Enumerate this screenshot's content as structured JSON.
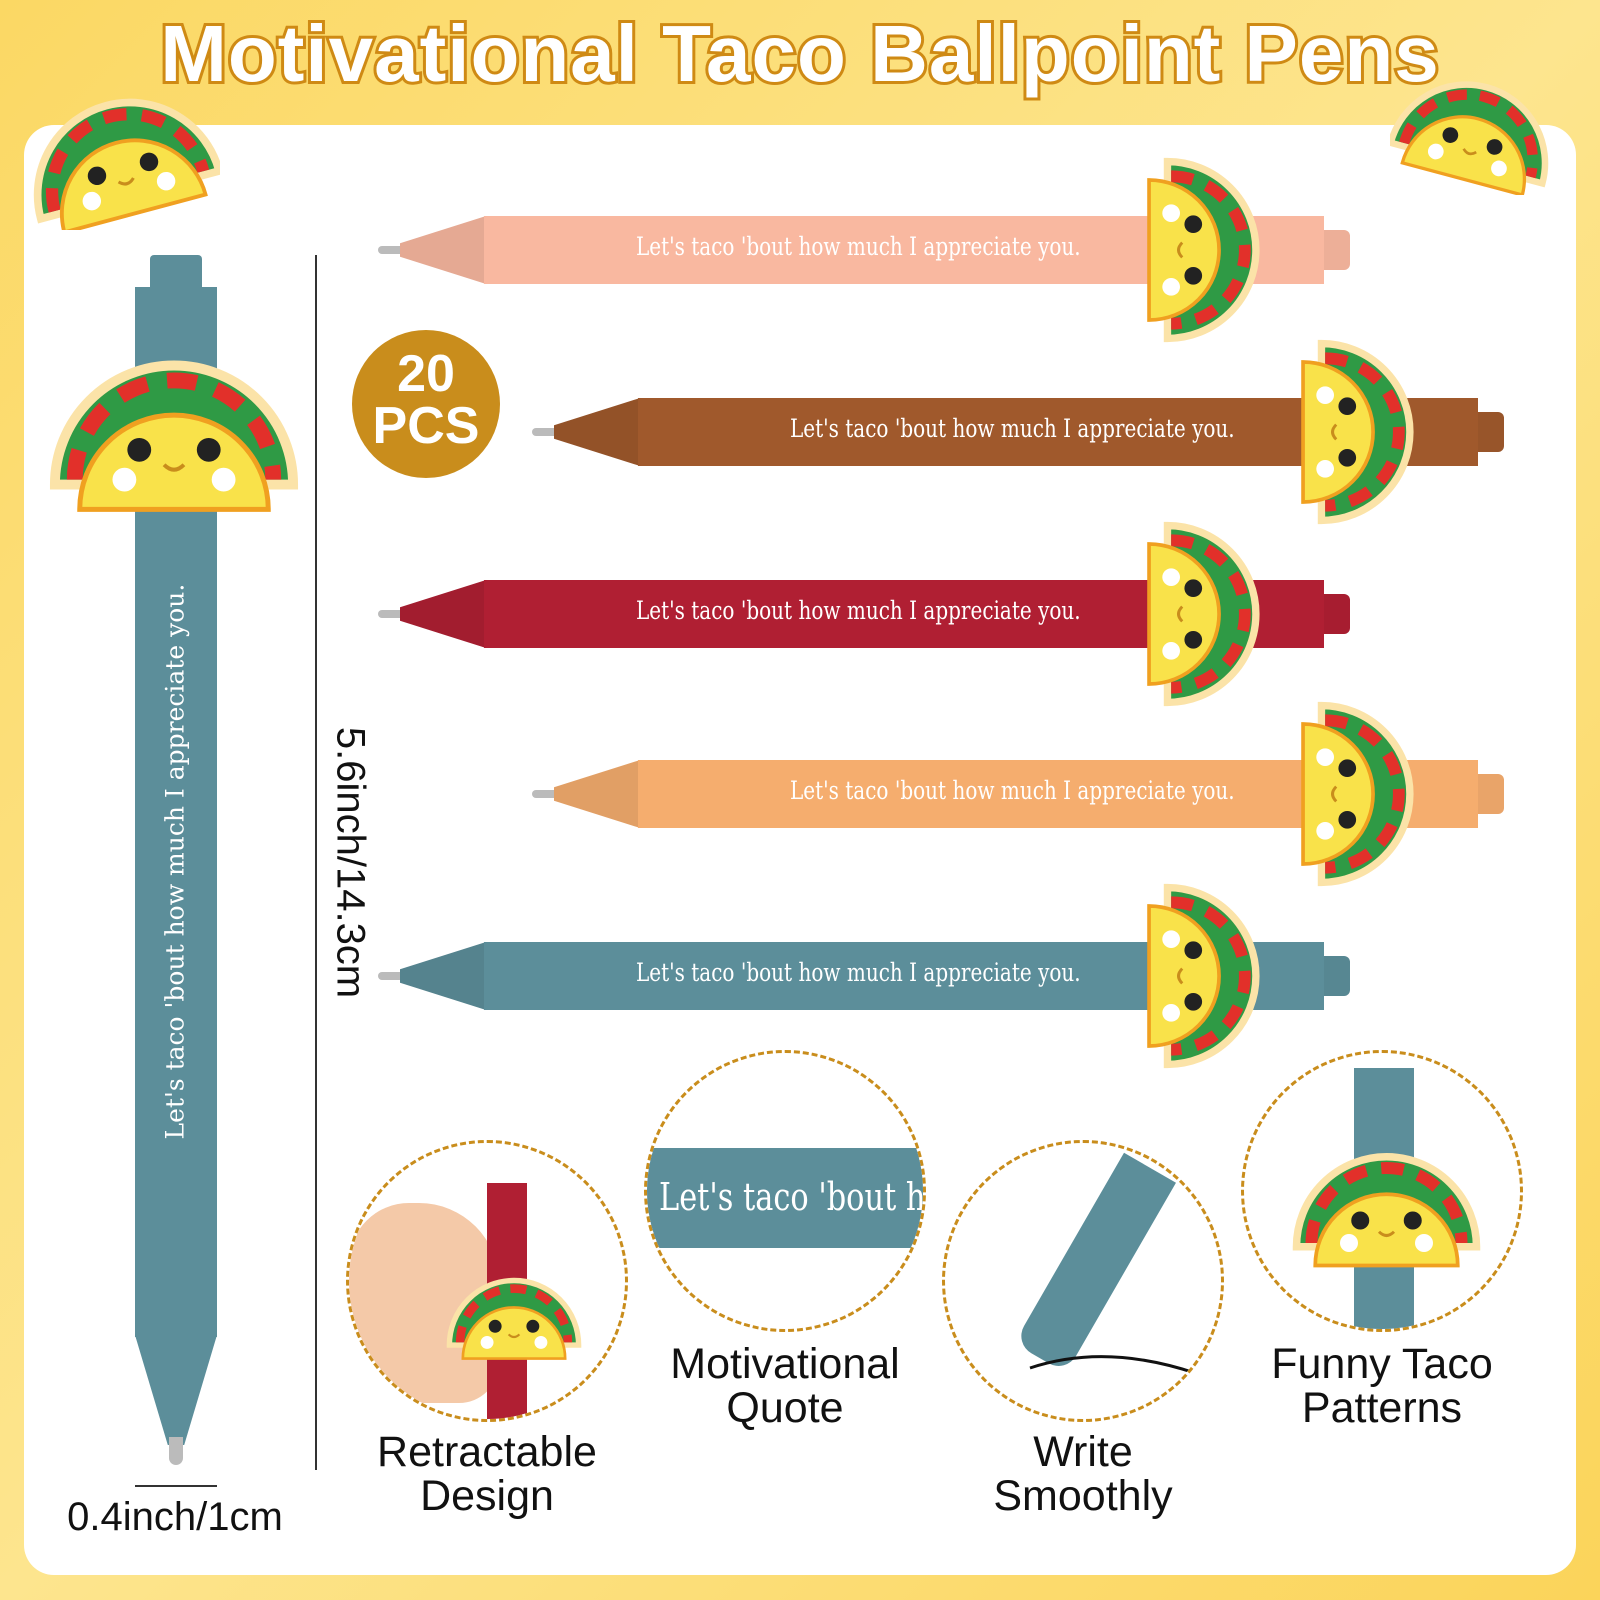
{
  "title": "Motivational Taco Ballpoint Pens",
  "quote": "Let's taco 'bout how much I appreciate you.",
  "quote_short": "Let's taco 'bout ho",
  "badge": {
    "count": "20",
    "unit": "PCS"
  },
  "dimensions": {
    "length": "5.6inch/14.3cm",
    "width": "0.4inch/1cm"
  },
  "pens": [
    {
      "color": "#f9b8a0"
    },
    {
      "color": "#a0592c"
    },
    {
      "color": "#b01f33"
    },
    {
      "color": "#f5ad6e"
    },
    {
      "color": "#5c8e9a"
    }
  ],
  "features": [
    {
      "label_1": "Retractable",
      "label_2": "Design"
    },
    {
      "label_1": "Motivational",
      "label_2": "Quote"
    },
    {
      "label_1": "Write",
      "label_2": "Smoothly"
    },
    {
      "label_1": "Funny Taco",
      "label_2": "Patterns"
    }
  ],
  "colors": {
    "accent": "#c98d1c",
    "background": "#fbd864",
    "taco_yellow": "#f9e24a"
  }
}
